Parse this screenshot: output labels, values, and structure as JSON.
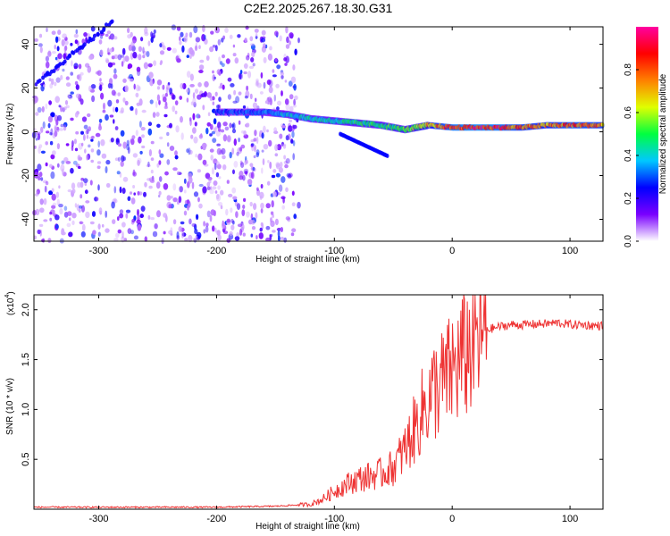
{
  "figure": {
    "title": "C2E2.2025.267.18.30.G31"
  },
  "chart_data": [
    {
      "type": "heatmap",
      "name": "spectrogram",
      "xlabel": "Height of straight line (km)",
      "ylabel": "Frequency (Hz)",
      "xlim": [
        -355,
        128
      ],
      "ylim": [
        -50,
        48
      ],
      "xticks": [
        -300,
        -200,
        -100,
        0,
        100
      ],
      "xtick_labels": [
        "-300",
        "-200",
        "-100",
        "0",
        "100"
      ],
      "yticks": [
        -40,
        -20,
        0,
        20,
        40
      ],
      "ytick_labels": [
        "-40",
        "-20",
        "0",
        "20",
        "40"
      ],
      "grid": false,
      "noise_region": {
        "x_range": [
          -355,
          -130
        ],
        "description_in_units": "scattered low-amplitude purple noise"
      },
      "ridge": {
        "x": [
          -200,
          -180,
          -160,
          -140,
          -120,
          -100,
          -80,
          -60,
          -40,
          -20,
          0,
          20,
          40,
          60,
          80,
          100,
          128
        ],
        "freq": [
          9,
          9,
          9,
          8,
          6,
          5,
          4,
          3,
          1,
          3,
          2,
          2,
          2,
          2,
          3,
          3,
          3
        ],
        "amplitude": [
          0.3,
          0.3,
          0.35,
          0.4,
          0.45,
          0.45,
          0.5,
          0.5,
          0.55,
          0.7,
          0.9,
          0.95,
          0.9,
          0.8,
          0.75,
          0.85,
          0.8
        ]
      },
      "colorbar": {
        "label": "Normalized spectral amplitude",
        "range": [
          0.0,
          1.0
        ],
        "ticks": [
          0.0,
          0.2,
          0.4,
          0.6,
          0.8
        ],
        "tick_labels": [
          "0.0",
          "0.2",
          "0.4",
          "0.6",
          "0.8"
        ],
        "colors": [
          "#ffffff",
          "#7a00ff",
          "#0000ff",
          "#00c8ff",
          "#00ff40",
          "#e0ff00",
          "#ff8000",
          "#ff0000",
          "#ff00a0"
        ]
      }
    },
    {
      "type": "line",
      "name": "snr",
      "xlabel": "Height of straight line (km)",
      "ylabel": "SNR (10 * v/v)",
      "multiplier_label": "(x10",
      "multiplier_exp": "4",
      "multiplier_close": ")",
      "xlim": [
        -355,
        128
      ],
      "ylim": [
        0.0,
        2.15
      ],
      "xticks": [
        -300,
        -200,
        -100,
        0,
        100
      ],
      "xtick_labels": [
        "-300",
        "-200",
        "-100",
        "0",
        "100"
      ],
      "yticks": [
        0.5,
        1.0,
        1.5,
        2.0
      ],
      "ytick_labels": [
        "0.5",
        "1.0",
        "1.5",
        "2.0"
      ],
      "grid": false,
      "color": "#ee3333",
      "series": [
        {
          "name": "SNR",
          "x": [
            -355,
            -300,
            -250,
            -200,
            -150,
            -120,
            -110,
            -100,
            -90,
            -80,
            -70,
            -60,
            -50,
            -40,
            -30,
            -25,
            -20,
            -15,
            -10,
            -5,
            0,
            5,
            10,
            20,
            30,
            40,
            50,
            60,
            80,
            90,
            95,
            100,
            110,
            120,
            128
          ],
          "y": [
            0.02,
            0.02,
            0.02,
            0.02,
            0.03,
            0.05,
            0.1,
            0.18,
            0.25,
            0.3,
            0.33,
            0.36,
            0.42,
            0.6,
            0.85,
            1.0,
            1.1,
            1.2,
            1.25,
            1.3,
            1.4,
            1.45,
            1.55,
            1.7,
            1.8,
            1.83,
            1.85,
            1.85,
            1.86,
            1.87,
            1.86,
            1.85,
            1.85,
            1.84,
            1.84
          ]
        }
      ]
    }
  ]
}
